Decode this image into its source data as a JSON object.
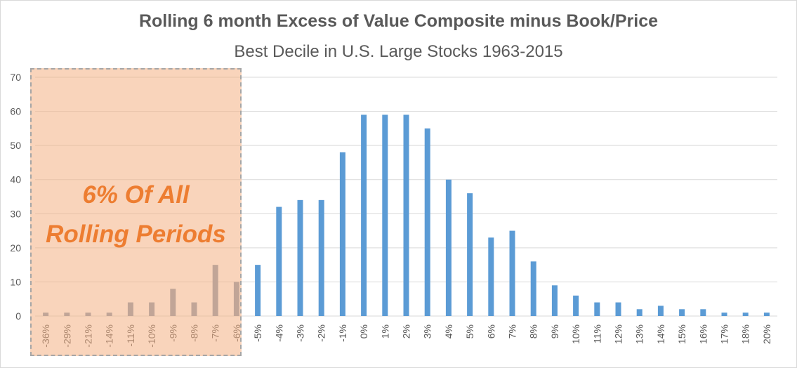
{
  "chart_data": {
    "type": "bar",
    "title": "Rolling 6 month Excess of Value Composite minus Book/Price",
    "subtitle": "Best Decile in U.S. Large Stocks 1963-2015",
    "xlabel": "",
    "ylabel": "",
    "ylim": [
      0,
      70
    ],
    "yticks": [
      0,
      10,
      20,
      30,
      40,
      50,
      60,
      70
    ],
    "grid": true,
    "categories": [
      "-36%",
      "-29%",
      "-21%",
      "-14%",
      "-11%",
      "-10%",
      "-9%",
      "-8%",
      "-7%",
      "-6%",
      "-5%",
      "-4%",
      "-3%",
      "-2%",
      "-1%",
      "0%",
      "1%",
      "2%",
      "3%",
      "4%",
      "5%",
      "6%",
      "7%",
      "8%",
      "9%",
      "10%",
      "11%",
      "12%",
      "13%",
      "14%",
      "15%",
      "16%",
      "17%",
      "18%",
      "20%"
    ],
    "values": [
      1,
      1,
      1,
      1,
      4,
      4,
      8,
      4,
      15,
      10,
      15,
      32,
      34,
      34,
      48,
      59,
      59,
      59,
      55,
      40,
      36,
      23,
      25,
      16,
      9,
      6,
      4,
      4,
      2,
      3,
      2,
      2,
      1,
      1,
      1
    ],
    "highlight_count": 10,
    "bar_color": "#5b9bd5",
    "highlight_bar_color": "#8497b0",
    "annotation": {
      "line1": "6% Of All",
      "line2": "Rolling Periods",
      "color": "#ed7d31",
      "fill": "#f4b183"
    }
  }
}
